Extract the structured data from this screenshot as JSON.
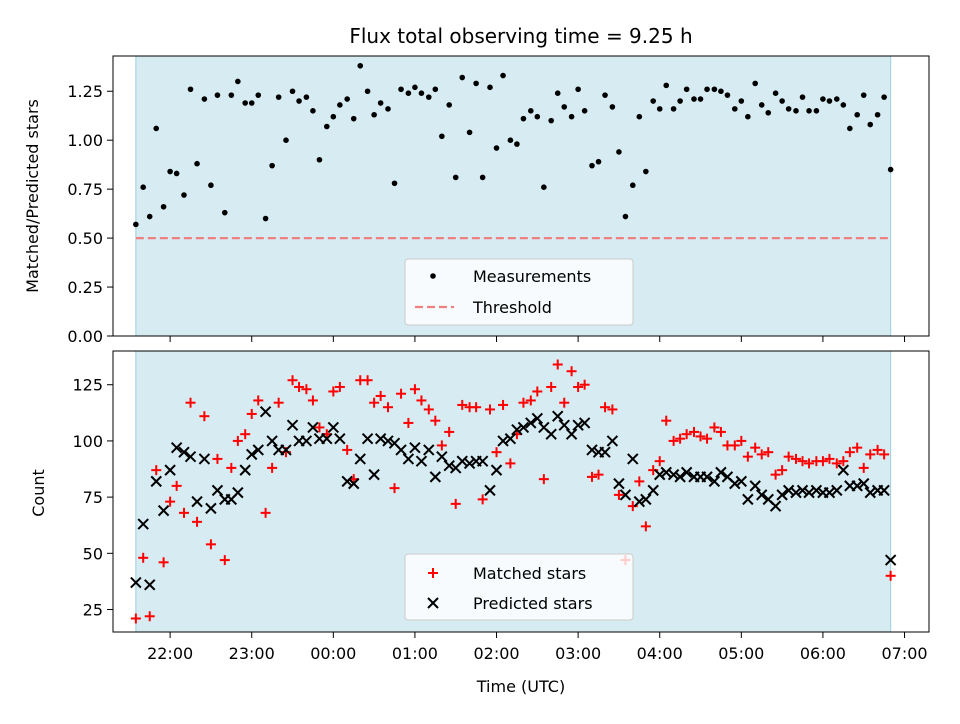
{
  "chart_data": [
    {
      "type": "scatter",
      "title": "Flux total observing time = 9.25 h",
      "xlabel": "",
      "ylabel": "Matched/Predicted stars",
      "x_unit": "hours",
      "xlim": [
        21.3,
        31.3
      ],
      "ylim": [
        0,
        1.43
      ],
      "yticks": [
        "0.00",
        "0.25",
        "0.50",
        "0.75",
        "1.00",
        "1.25"
      ],
      "xticks": [
        22,
        23,
        24,
        25,
        26,
        27,
        28,
        29,
        30,
        31
      ],
      "shaded_span": [
        21.58,
        30.83
      ],
      "shade_color": "#add8e6",
      "threshold": 0.5,
      "legend": {
        "location": "lower center",
        "entries": [
          "Measurements",
          "Threshold"
        ]
      },
      "series": [
        {
          "name": "Measurements",
          "color": "#000000",
          "marker": "dot",
          "x": [
            21.58,
            21.67,
            21.75,
            21.83,
            21.92,
            22.0,
            22.08,
            22.17,
            22.25,
            22.33,
            22.42,
            22.5,
            22.58,
            22.67,
            22.75,
            22.83,
            22.92,
            23.0,
            23.08,
            23.17,
            23.25,
            23.33,
            23.42,
            23.5,
            23.58,
            23.67,
            23.75,
            23.83,
            23.92,
            24.0,
            24.08,
            24.17,
            24.25,
            24.33,
            24.42,
            24.5,
            24.58,
            24.67,
            24.75,
            24.83,
            24.92,
            25.0,
            25.08,
            25.17,
            25.25,
            25.33,
            25.42,
            25.5,
            25.58,
            25.67,
            25.75,
            25.83,
            25.92,
            26.0,
            26.08,
            26.17,
            26.25,
            26.33,
            26.42,
            26.5,
            26.58,
            26.67,
            26.75,
            26.83,
            26.92,
            27.0,
            27.08,
            27.17,
            27.25,
            27.33,
            27.42,
            27.5,
            27.58,
            27.67,
            27.75,
            27.83,
            27.92,
            28.0,
            28.08,
            28.17,
            28.25,
            28.33,
            28.42,
            28.5,
            28.58,
            28.67,
            28.75,
            28.83,
            28.92,
            29.0,
            29.08,
            29.17,
            29.25,
            29.33,
            29.42,
            29.5,
            29.58,
            29.67,
            29.75,
            29.83,
            29.92,
            30.0,
            30.08,
            30.17,
            30.25,
            30.33,
            30.42,
            30.5,
            30.58,
            30.67,
            30.75,
            30.83
          ],
          "y": [
            0.57,
            0.76,
            0.61,
            1.06,
            0.66,
            0.84,
            0.83,
            0.72,
            1.26,
            0.88,
            1.21,
            0.77,
            1.23,
            0.63,
            1.23,
            1.3,
            1.19,
            1.19,
            1.23,
            0.6,
            0.87,
            1.22,
            1.0,
            1.25,
            1.2,
            1.22,
            1.15,
            0.9,
            1.07,
            1.12,
            1.18,
            1.21,
            1.11,
            1.38,
            1.25,
            1.13,
            1.19,
            1.16,
            0.78,
            1.26,
            1.24,
            1.27,
            1.24,
            1.22,
            1.26,
            1.02,
            1.18,
            0.81,
            1.32,
            1.04,
            1.29,
            0.81,
            1.27,
            0.96,
            1.33,
            1.0,
            0.98,
            1.11,
            1.15,
            1.12,
            0.76,
            1.1,
            1.24,
            1.17,
            1.12,
            1.26,
            1.15,
            0.87,
            0.89,
            1.23,
            1.17,
            0.94,
            0.61,
            0.77,
            1.12,
            0.84,
            1.2,
            1.16,
            1.28,
            1.16,
            1.2,
            1.26,
            1.21,
            1.21,
            1.26,
            1.26,
            1.25,
            1.23,
            1.16,
            1.2,
            1.12,
            1.29,
            1.18,
            1.14,
            1.24,
            1.2,
            1.16,
            1.15,
            1.22,
            1.15,
            1.15,
            1.21,
            1.2,
            1.21,
            1.18,
            1.06,
            1.13,
            1.23,
            1.08,
            1.13,
            1.22,
            0.85
          ]
        },
        {
          "name": "Threshold",
          "color": "#f08080",
          "style": "dashed",
          "y": 0.5
        }
      ]
    },
    {
      "type": "scatter",
      "title": "",
      "xlabel": "Time (UTC)",
      "ylabel": "Count",
      "x_unit": "hours",
      "xlim": [
        21.3,
        31.3
      ],
      "ylim": [
        15,
        140
      ],
      "yticks": [
        "25",
        "50",
        "75",
        "100",
        "125"
      ],
      "xticks": [
        "22:00",
        "23:00",
        "00:00",
        "01:00",
        "02:00",
        "03:00",
        "04:00",
        "05:00",
        "06:00",
        "07:00"
      ],
      "shaded_span": [
        21.58,
        30.83
      ],
      "shade_color": "#add8e6",
      "legend": {
        "location": "lower center",
        "entries": [
          "Matched stars",
          "Predicted stars"
        ]
      },
      "series": [
        {
          "name": "Matched stars",
          "color": "#ff0000",
          "marker": "plus",
          "x": [
            21.58,
            21.67,
            21.75,
            21.83,
            21.92,
            22.0,
            22.08,
            22.17,
            22.25,
            22.33,
            22.42,
            22.5,
            22.58,
            22.67,
            22.75,
            22.83,
            22.92,
            23.0,
            23.08,
            23.17,
            23.25,
            23.33,
            23.42,
            23.5,
            23.58,
            23.67,
            23.75,
            23.83,
            23.92,
            24.0,
            24.08,
            24.17,
            24.25,
            24.33,
            24.42,
            24.5,
            24.58,
            24.67,
            24.75,
            24.83,
            24.92,
            25.0,
            25.08,
            25.17,
            25.25,
            25.33,
            25.42,
            25.5,
            25.58,
            25.67,
            25.75,
            25.83,
            25.92,
            26.0,
            26.08,
            26.17,
            26.25,
            26.33,
            26.42,
            26.5,
            26.58,
            26.67,
            26.75,
            26.83,
            26.92,
            27.0,
            27.08,
            27.17,
            27.25,
            27.33,
            27.42,
            27.5,
            27.58,
            27.67,
            27.75,
            27.83,
            27.92,
            28.0,
            28.08,
            28.17,
            28.25,
            28.33,
            28.42,
            28.5,
            28.58,
            28.67,
            28.75,
            28.83,
            28.92,
            29.0,
            29.08,
            29.17,
            29.25,
            29.33,
            29.42,
            29.5,
            29.58,
            29.67,
            29.75,
            29.83,
            29.92,
            30.0,
            30.08,
            30.17,
            30.25,
            30.33,
            30.42,
            30.5,
            30.58,
            30.67,
            30.75,
            30.83
          ],
          "y": [
            21,
            48,
            22,
            87,
            46,
            73,
            80,
            68,
            117,
            64,
            111,
            54,
            92,
            47,
            88,
            100,
            103,
            112,
            118,
            68,
            88,
            117,
            95,
            127,
            124,
            123,
            118,
            106,
            103,
            122,
            124,
            96,
            83,
            127,
            127,
            117,
            120,
            115,
            79,
            121,
            108,
            123,
            118,
            114,
            109,
            98,
            104,
            72,
            116,
            115,
            115,
            74,
            114,
            95,
            116,
            90,
            103,
            117,
            118,
            122,
            83,
            124,
            134,
            117,
            131,
            124,
            125,
            84,
            85,
            115,
            114,
            76,
            47,
            71,
            82,
            62,
            87,
            91,
            109,
            100,
            101,
            103,
            104,
            102,
            101,
            106,
            104,
            98,
            98,
            100,
            93,
            97,
            94,
            95,
            85,
            87,
            93,
            92,
            91,
            90,
            91,
            91,
            92,
            90,
            91,
            95,
            97,
            88,
            94,
            96,
            94,
            40
          ]
        },
        {
          "name": "Predicted stars",
          "color": "#000000",
          "marker": "x",
          "x": [
            21.58,
            21.67,
            21.75,
            21.83,
            21.92,
            22.0,
            22.08,
            22.17,
            22.25,
            22.33,
            22.42,
            22.5,
            22.58,
            22.67,
            22.75,
            22.83,
            22.92,
            23.0,
            23.08,
            23.17,
            23.25,
            23.33,
            23.42,
            23.5,
            23.58,
            23.67,
            23.75,
            23.83,
            23.92,
            24.0,
            24.08,
            24.17,
            24.25,
            24.33,
            24.42,
            24.5,
            24.58,
            24.67,
            24.75,
            24.83,
            24.92,
            25.0,
            25.08,
            25.17,
            25.25,
            25.33,
            25.42,
            25.5,
            25.58,
            25.67,
            25.75,
            25.83,
            25.92,
            26.0,
            26.08,
            26.17,
            26.25,
            26.33,
            26.42,
            26.5,
            26.58,
            26.67,
            26.75,
            26.83,
            26.92,
            27.0,
            27.08,
            27.17,
            27.25,
            27.33,
            27.42,
            27.5,
            27.58,
            27.67,
            27.75,
            27.83,
            27.92,
            28.0,
            28.08,
            28.17,
            28.25,
            28.33,
            28.42,
            28.5,
            28.58,
            28.67,
            28.75,
            28.83,
            28.92,
            29.0,
            29.08,
            29.17,
            29.25,
            29.33,
            29.42,
            29.5,
            29.58,
            29.67,
            29.75,
            29.83,
            29.92,
            30.0,
            30.08,
            30.17,
            30.25,
            30.33,
            30.42,
            30.5,
            30.58,
            30.67,
            30.75,
            30.83
          ],
          "y": [
            37,
            63,
            36,
            82,
            69,
            87,
            97,
            95,
            93,
            73,
            92,
            70,
            78,
            74,
            74,
            77,
            87,
            94,
            96,
            113,
            100,
            96,
            96,
            107,
            100,
            100,
            106,
            101,
            101,
            106,
            101,
            82,
            81,
            92,
            101,
            85,
            101,
            100,
            99,
            96,
            92,
            97,
            91,
            96,
            84,
            93,
            89,
            88,
            91,
            90,
            91,
            91,
            78,
            87,
            100,
            101,
            105,
            106,
            108,
            110,
            106,
            103,
            111,
            107,
            103,
            107,
            108,
            96,
            95,
            95,
            100,
            81,
            76,
            92,
            73,
            74,
            78,
            85,
            86,
            85,
            84,
            86,
            84,
            84,
            84,
            82,
            86,
            84,
            81,
            82,
            74,
            80,
            76,
            74,
            71,
            76,
            78,
            77,
            78,
            77,
            78,
            77,
            77,
            78,
            87,
            80,
            80,
            81,
            77,
            78,
            78,
            47
          ]
        }
      ]
    }
  ]
}
